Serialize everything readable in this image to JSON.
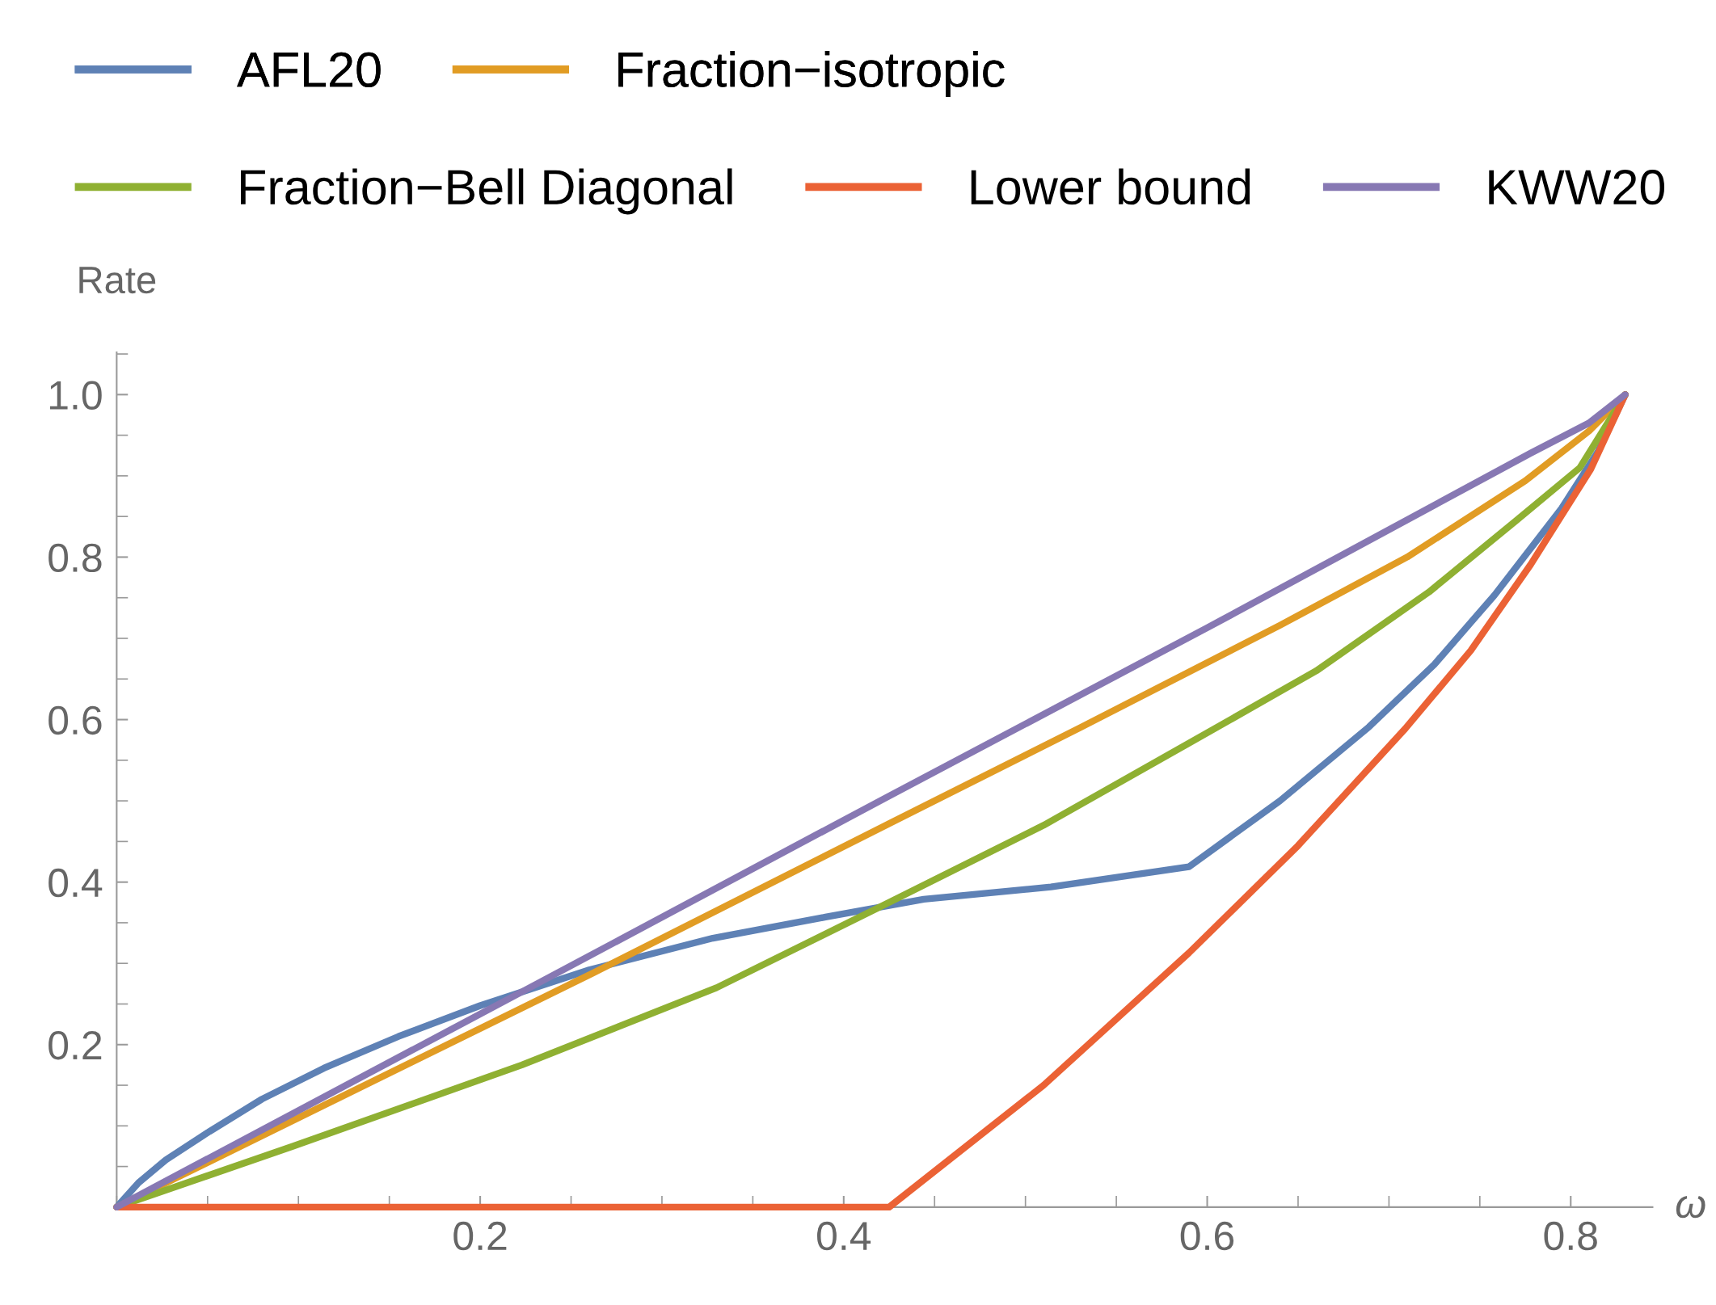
{
  "chart_data": {
    "type": "line",
    "xlabel": "ω",
    "ylabel": "Rate",
    "xlim": [
      0,
      0.845
    ],
    "ylim": [
      0,
      1.052
    ],
    "xticks": [
      0.2,
      0.4,
      0.6,
      0.8
    ],
    "yticks": [
      0.2,
      0.4,
      0.6,
      0.8,
      {
        "value": 1.0,
        "label": "1.0"
      }
    ],
    "grid": false,
    "legend": "top",
    "marker": "none",
    "line_style": "solid",
    "series": [
      {
        "name": "AFL20",
        "color": "#5e81b5",
        "x": [
          0,
          0.012,
          0.027,
          0.051,
          0.08,
          0.114,
          0.155,
          0.2,
          0.26,
          0.328,
          0.39,
          0.444,
          0.514,
          0.59,
          0.59,
          0.64,
          0.689,
          0.725,
          0.758,
          0.795,
          0.815,
          0.83
        ],
        "values": [
          0,
          0.03,
          0.058,
          0.093,
          0.133,
          0.171,
          0.21,
          0.248,
          0.292,
          0.331,
          0.357,
          0.379,
          0.394,
          0.419,
          0.419,
          0.5,
          0.591,
          0.668,
          0.753,
          0.86,
          0.93,
          1.0
        ]
      },
      {
        "name": "Fraction−isotropic",
        "color": "#e19c24",
        "x": [
          0,
          0.262,
          0.425,
          0.53,
          0.64,
          0.71,
          0.775,
          0.81,
          0.83
        ],
        "values": [
          0,
          0.288,
          0.472,
          0.59,
          0.716,
          0.8,
          0.894,
          0.955,
          1.0
        ]
      },
      {
        "name": "Fraction−Bell Diagonal",
        "color": "#8fb032",
        "x": [
          0,
          0.097,
          0.223,
          0.33,
          0.425,
          0.51,
          0.59,
          0.66,
          0.722,
          0.77,
          0.805,
          0.83
        ],
        "values": [
          0,
          0.075,
          0.175,
          0.27,
          0.375,
          0.47,
          0.571,
          0.66,
          0.757,
          0.845,
          0.91,
          1.0
        ]
      },
      {
        "name": "Lower bound",
        "color": "#eb6235",
        "x": [
          0,
          0.425,
          0.51,
          0.59,
          0.65,
          0.709,
          0.745,
          0.778,
          0.811,
          0.83
        ],
        "values": [
          0,
          0,
          0.15,
          0.313,
          0.445,
          0.589,
          0.685,
          0.791,
          0.908,
          1.0
        ]
      },
      {
        "name": "KWW20",
        "color": "#8778b3",
        "x": [
          0,
          0.223,
          0.425,
          0.6,
          0.778,
          0.81,
          0.83
        ],
        "values": [
          0,
          0.265,
          0.506,
          0.713,
          0.928,
          0.965,
          1.0
        ]
      }
    ]
  }
}
